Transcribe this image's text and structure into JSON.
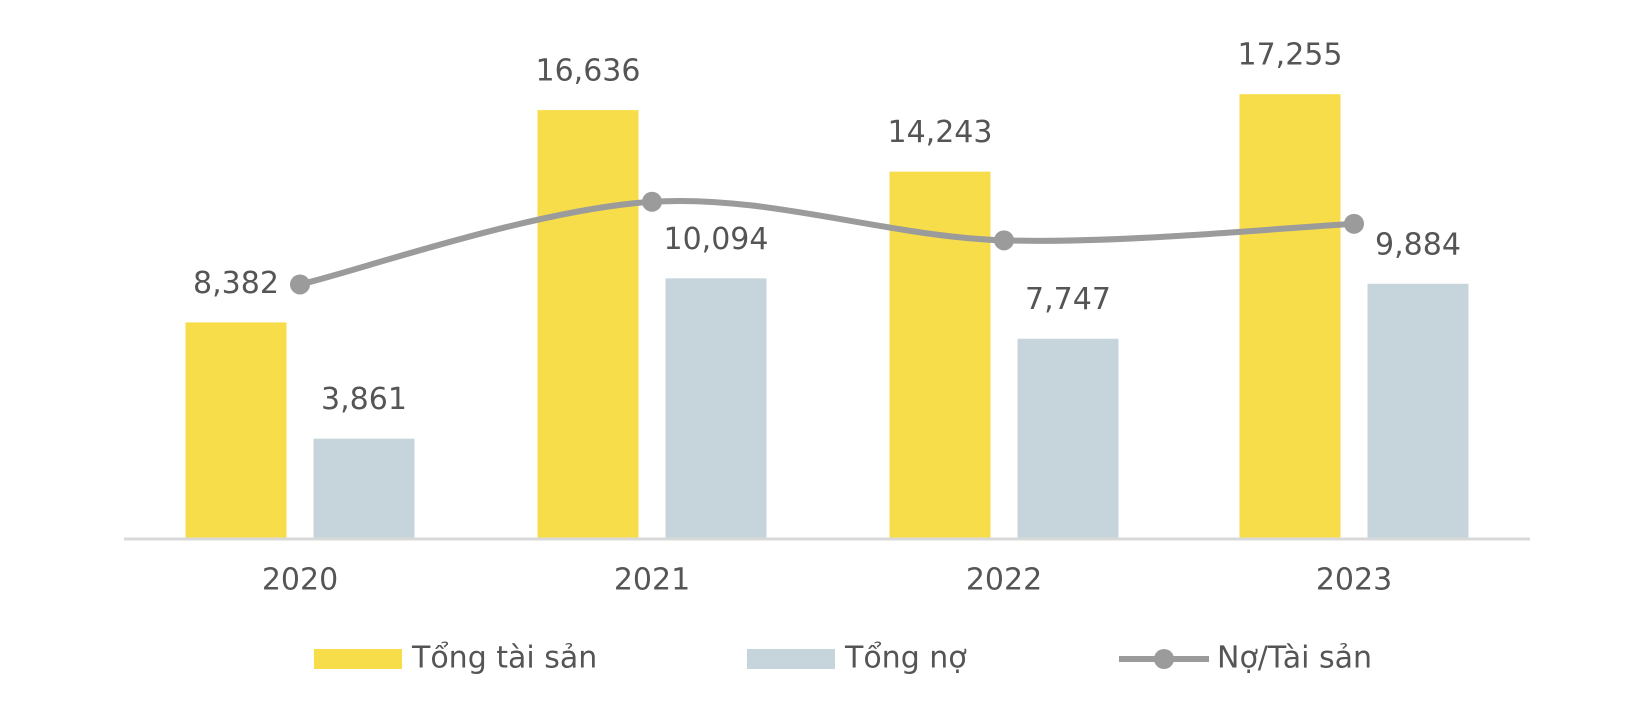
{
  "chart_data": {
    "type": "bar",
    "categories": [
      "2020",
      "2021",
      "2022",
      "2023"
    ],
    "series": [
      {
        "name": "Tổng tài sản",
        "color": "#F7DD4A",
        "values": [
          8382,
          16636,
          14243,
          17255
        ],
        "value_labels": [
          "8,382",
          "16,636",
          "14,243",
          "17,255"
        ]
      },
      {
        "name": "Tổng nợ",
        "color": "#C5D5DB",
        "values": [
          3861,
          10094,
          7747,
          9884
        ],
        "value_labels": [
          "3,861",
          "10,094",
          "7,747",
          "9,884"
        ]
      },
      {
        "name": "Nợ/Tài sản",
        "color": "#9B9B9B",
        "type": "line",
        "axis": "y2",
        "values": [
          0.46,
          0.61,
          0.54,
          0.57
        ]
      }
    ],
    "ylim": [
      0,
      18000
    ],
    "y2lim": [
      0,
      0.84
    ],
    "legend": "bottom"
  }
}
